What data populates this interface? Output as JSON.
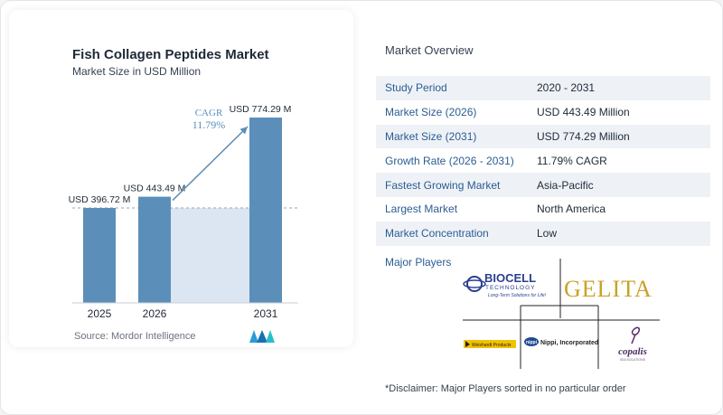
{
  "chart": {
    "title": "Fish Collagen Peptides Market",
    "subtitle": "Market Size in USD Million",
    "source": "Source:  Mordor Intelligence",
    "cagr_label": "CAGR",
    "cagr_value": "11.79%"
  },
  "chart_data": {
    "type": "bar",
    "categories": [
      "2025",
      "2026",
      "2031"
    ],
    "values": [
      396.72,
      443.49,
      774.29
    ],
    "value_labels": [
      "USD 396.72 M",
      "USD 443.49 M",
      "USD 774.29 M"
    ],
    "title": "Fish Collagen Peptides Market",
    "subtitle": "Market Size in USD Million",
    "xlabel": "",
    "ylabel": "",
    "ylim": [
      0,
      800
    ],
    "annotation": "CAGR 11.79%",
    "colors": {
      "bar": "#5b8fb9",
      "bar_top": "#4a7da8",
      "shade": "#dbe6f2",
      "arrow": "#5b8fb9",
      "cagr_text": "#5b8fb9"
    }
  },
  "overview": {
    "title": "Market Overview",
    "rows": [
      {
        "label": "Study Period",
        "value": "2020 - 2031"
      },
      {
        "label": "Market Size (2026)",
        "value": "USD 443.49 Million"
      },
      {
        "label": "Market Size (2031)",
        "value": "USD 774.29 Million"
      },
      {
        "label": "Growth Rate (2026 - 2031)",
        "value": "11.79% CAGR"
      },
      {
        "label": "Fastest Growing Market",
        "value": "Asia-Pacific"
      },
      {
        "label": "Largest Market",
        "value": "North America"
      },
      {
        "label": "Market Concentration",
        "value": "Low"
      }
    ]
  },
  "players": {
    "title": "Major Players",
    "logos": {
      "biocell_name": "BIOCELL",
      "biocell_sub": "TECHNOLOGY",
      "biocell_tag": "Long-Term Solutions for Life!",
      "gelita": "GELITA",
      "weishardt": "Weishardt Products",
      "nippi": "Nippi, Incorporated",
      "nippi_mark": "nippi",
      "copalis": "copalis",
      "copalis_sub": "SEA SOLUTIONS"
    },
    "disclaimer": "*Disclaimer: Major Players sorted in no particular order"
  }
}
